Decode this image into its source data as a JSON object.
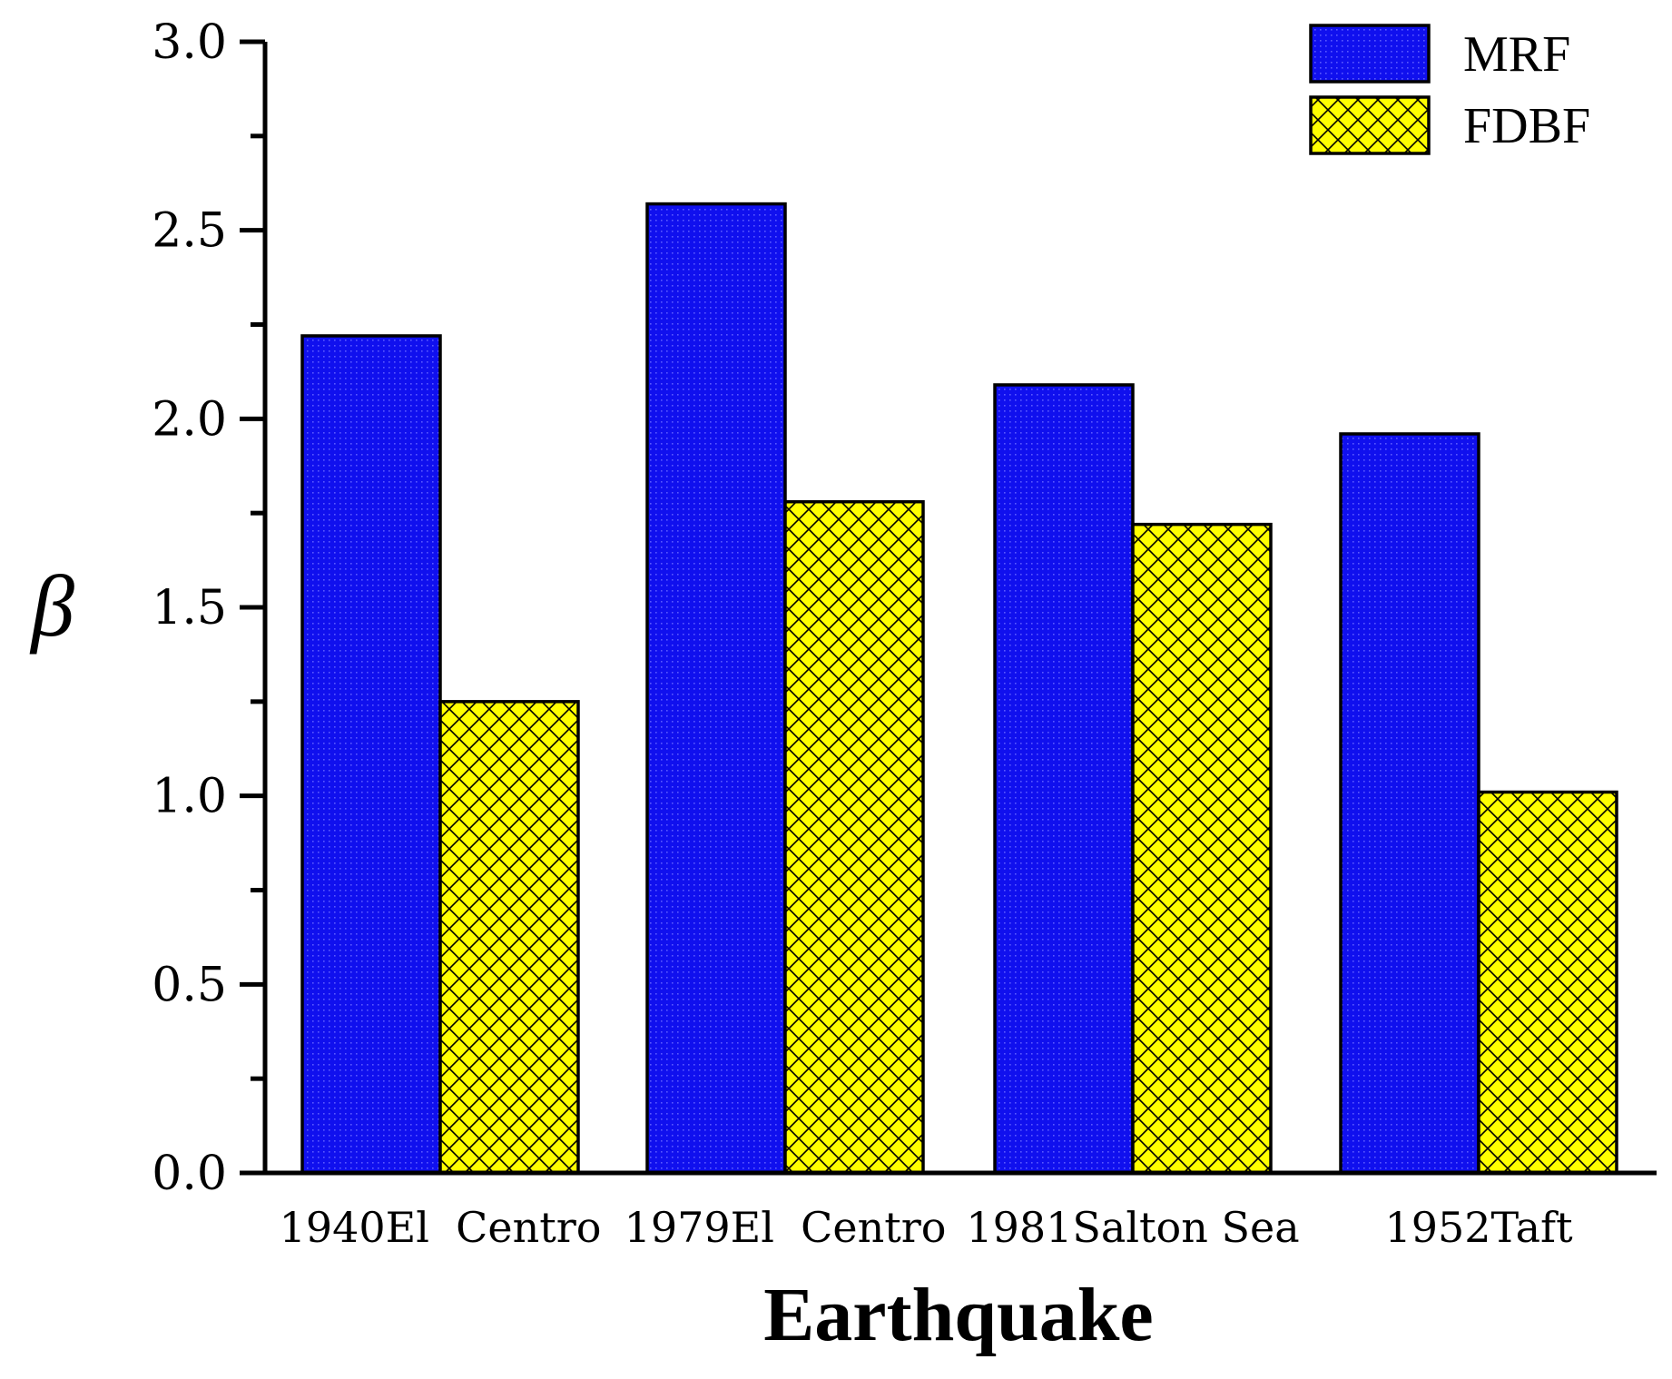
{
  "chart_data": {
    "type": "bar",
    "title": "",
    "xlabel": "Earthquake",
    "ylabel": "β",
    "ylim": [
      0,
      3.0
    ],
    "yticks": [
      "0.0",
      "0.5",
      "1.0",
      "1.5",
      "2.0",
      "2.5",
      "3.0"
    ],
    "categories": [
      "1940El  Centro",
      "1979El  Centro",
      "1981Salton Sea",
      "1952Taft"
    ],
    "series": [
      {
        "name": "MRF",
        "values": [
          2.22,
          2.57,
          2.09,
          1.96
        ],
        "color": "#1010ee",
        "pattern": "dotted"
      },
      {
        "name": "FDBF",
        "values": [
          1.25,
          1.78,
          1.72,
          1.01
        ],
        "color": "#ffff00",
        "pattern": "crosshatch"
      }
    ],
    "legend": "top-right",
    "grid": false
  }
}
